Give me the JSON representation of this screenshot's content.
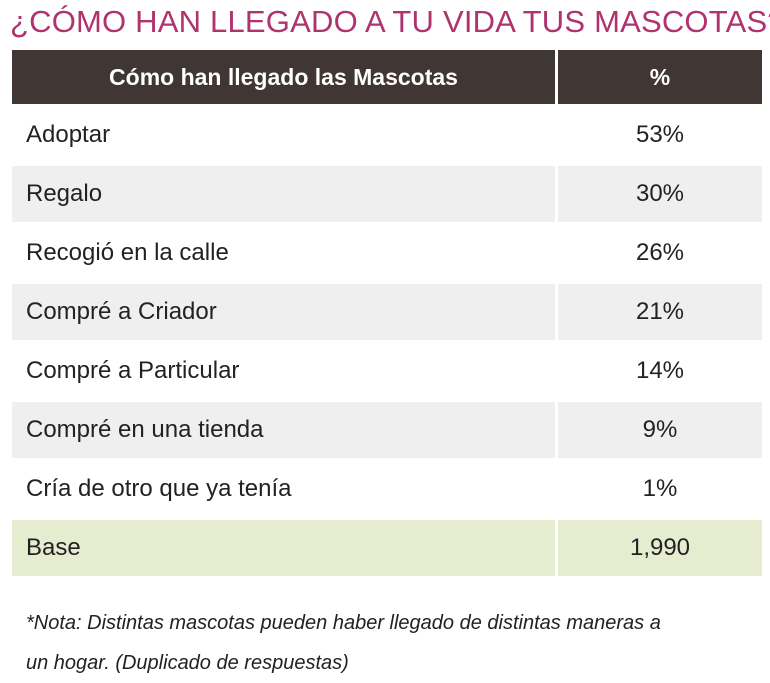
{
  "title": "¿CÓMO HAN LLEGADO A TU VIDA TUS MASCOTAS?",
  "chart_data": {
    "type": "table",
    "columns": [
      "Cómo han llegado las Mascotas",
      "%"
    ],
    "rows": [
      {
        "label": "Adoptar",
        "value": "53%"
      },
      {
        "label": "Regalo",
        "value": "30%"
      },
      {
        "label": "Recogió en la calle",
        "value": "26%"
      },
      {
        "label": "Compré a Criador",
        "value": "21%"
      },
      {
        "label": "Compré a Particular",
        "value": "14%"
      },
      {
        "label": "Compré en una tienda",
        "value": "9%"
      },
      {
        "label": "Cría de otro que ya tenía",
        "value": "1%"
      }
    ],
    "base": {
      "label": "Base",
      "value": "1,990"
    },
    "colors": {
      "title": "#b0326e",
      "header_bg": "#403634",
      "stripe": "#efefef",
      "base_bg": "#e6ecd0"
    }
  },
  "note": {
    "line1": "*Nota: Distintas mascotas pueden haber llegado de distintas maneras a",
    "line2": "un hogar. (Duplicado de respuestas)"
  }
}
